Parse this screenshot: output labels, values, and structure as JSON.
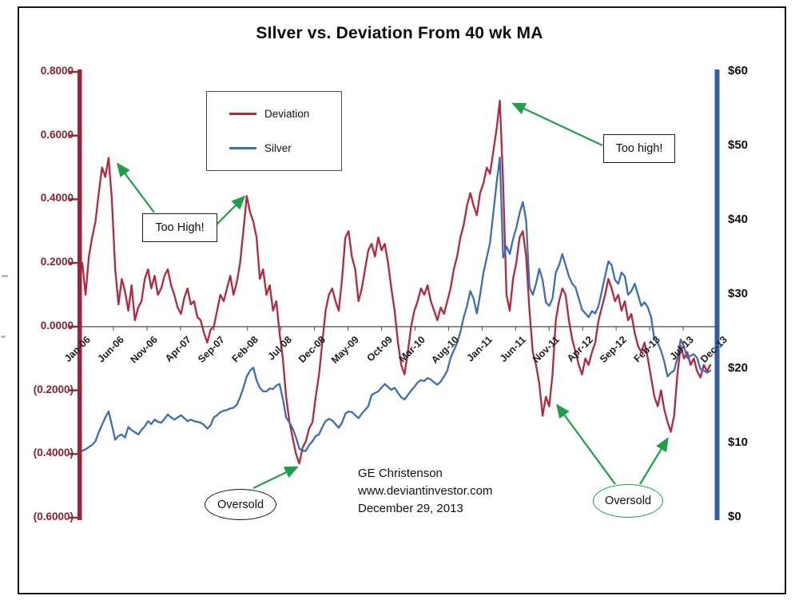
{
  "credit": {
    "line1": "GE Christenson",
    "line2": "www.deviantinvestor.com",
    "line3": "December 29, 2013"
  },
  "annotations": {
    "too_high_left": {
      "label": "Too High!"
    },
    "too_high_right": {
      "label": "Too high!"
    },
    "oversold_2008": {
      "label": "Oversold"
    },
    "oversold_right": {
      "label": "Oversold"
    },
    "arrow_color": "#1ea04b"
  },
  "chart_data": {
    "type": "line",
    "title": "SIlver vs. Deviation From 40 wk MA",
    "x_tick_labels": [
      "Jan-06",
      "Jun-06",
      "Nov-06",
      "Apr-07",
      "Sep-07",
      "Feb-08",
      "Jul-08",
      "Dec-08",
      "May-09",
      "Oct-09",
      "Mar-10",
      "Aug-10",
      "Jan-11",
      "Jun-11",
      "Nov-11",
      "Apr-12",
      "Sep-12",
      "Feb-13",
      "Jul-13",
      "Dec-13"
    ],
    "left_axis": {
      "tick_labels": [
        "0.8000",
        "0.6000",
        "0.4000",
        "0.2000",
        "0.0000",
        "(0.2000)",
        "(0.4000)",
        "(0.6000)"
      ],
      "tick_values": [
        0.8,
        0.6,
        0.4,
        0.2,
        0,
        -0.2,
        -0.4,
        -0.6
      ],
      "range": [
        -0.6,
        0.8
      ],
      "color": "#8b2030"
    },
    "right_axis": {
      "tick_labels": [
        "$60",
        "$50",
        "$40",
        "$30",
        "$20",
        "$10",
        "$0"
      ],
      "tick_values": [
        60,
        50,
        40,
        30,
        20,
        10,
        0
      ],
      "range": [
        0,
        60
      ],
      "color": "#2f5fa8"
    },
    "grid": "zero-line-only",
    "legend_position": "inside-top-left",
    "series": [
      {
        "name": "Deviation",
        "axis": "left",
        "color": "#b5273d",
        "values": [
          0.2,
          0.1,
          0.22,
          0.28,
          0.33,
          0.42,
          0.5,
          0.47,
          0.53,
          0.4,
          0.18,
          0.07,
          0.15,
          0.11,
          0.05,
          0.13,
          0.02,
          0.06,
          0.08,
          0.15,
          0.18,
          0.12,
          0.16,
          0.1,
          0.12,
          0.16,
          0.18,
          0.13,
          0.1,
          0.06,
          0.04,
          0.09,
          0.12,
          0.07,
          0.08,
          0.03,
          0.02,
          -0.02,
          -0.05,
          -0.01,
          0.0,
          0.05,
          0.1,
          0.08,
          0.12,
          0.16,
          0.1,
          0.14,
          0.2,
          0.3,
          0.41,
          0.36,
          0.33,
          0.28,
          0.15,
          0.18,
          0.1,
          0.13,
          0.05,
          0.08,
          -0.02,
          -0.1,
          -0.22,
          -0.3,
          -0.35,
          -0.4,
          -0.43,
          -0.38,
          -0.36,
          -0.32,
          -0.3,
          -0.22,
          -0.15,
          -0.05,
          0.05,
          0.1,
          0.12,
          0.08,
          0.05,
          0.15,
          0.28,
          0.3,
          0.22,
          0.18,
          0.08,
          0.12,
          0.18,
          0.24,
          0.26,
          0.22,
          0.28,
          0.24,
          0.26,
          0.2,
          0.12,
          0.05,
          -0.05,
          -0.12,
          -0.15,
          -0.08,
          0.0,
          0.05,
          0.08,
          0.12,
          0.1,
          0.13,
          0.08,
          0.05,
          0.02,
          0.06,
          0.04,
          0.08,
          0.12,
          0.18,
          0.22,
          0.28,
          0.32,
          0.38,
          0.42,
          0.38,
          0.35,
          0.42,
          0.45,
          0.5,
          0.48,
          0.55,
          0.62,
          0.71,
          0.45,
          0.1,
          0.05,
          0.15,
          0.2,
          0.28,
          0.3,
          0.22,
          0.05,
          -0.08,
          -0.12,
          -0.18,
          -0.28,
          -0.22,
          -0.25,
          -0.15,
          0.02,
          0.08,
          0.12,
          0.1,
          0.02,
          -0.04,
          -0.08,
          -0.12,
          -0.15,
          -0.1,
          -0.12,
          -0.08,
          -0.05,
          0.02,
          0.06,
          0.1,
          0.15,
          0.12,
          0.08,
          0.1,
          0.05,
          0.08,
          0.02,
          0.04,
          -0.02,
          -0.06,
          -0.08,
          -0.05,
          -0.1,
          -0.16,
          -0.22,
          -0.25,
          -0.2,
          -0.26,
          -0.3,
          -0.33,
          -0.28,
          -0.15,
          -0.06,
          -0.1,
          -0.08,
          -0.12,
          -0.1,
          -0.14,
          -0.16,
          -0.12,
          -0.14,
          -0.12
        ]
      },
      {
        "name": "Silver",
        "axis": "right",
        "color": "#3c6db5",
        "values": [
          9.0,
          9.2,
          9.5,
          9.8,
          10.3,
          11.5,
          12.5,
          13.5,
          14.3,
          12.5,
          10.5,
          11.0,
          11.2,
          10.8,
          12.2,
          11.8,
          11.5,
          11.2,
          11.8,
          12.3,
          13.0,
          12.6,
          13.2,
          12.9,
          12.8,
          13.3,
          13.9,
          13.5,
          13.2,
          13.5,
          13.8,
          13.4,
          13.0,
          13.2,
          13.0,
          12.9,
          12.8,
          12.5,
          12.0,
          12.4,
          13.5,
          13.8,
          14.2,
          14.4,
          14.5,
          14.7,
          14.8,
          15.2,
          16.2,
          17.5,
          19.0,
          19.8,
          20.2,
          18.5,
          17.5,
          17.0,
          17.0,
          17.4,
          17.3,
          17.8,
          18.0,
          16.0,
          13.5,
          12.8,
          12.0,
          10.8,
          9.3,
          9.0,
          9.0,
          9.8,
          10.3,
          11.0,
          11.2,
          12.2,
          13.0,
          13.3,
          13.1,
          12.6,
          12.1,
          12.8,
          14.0,
          14.3,
          14.2,
          13.8,
          13.4,
          14.0,
          14.5,
          15.0,
          16.5,
          16.8,
          17.0,
          17.5,
          18.0,
          17.6,
          17.2,
          17.5,
          16.8,
          16.2,
          15.9,
          16.5,
          17.1,
          17.6,
          18.2,
          18.5,
          18.4,
          18.8,
          18.6,
          18.2,
          17.9,
          18.3,
          19.0,
          19.8,
          21.5,
          22.5,
          23.5,
          25.0,
          27.0,
          28.5,
          30.5,
          29.5,
          27.5,
          30.0,
          33.0,
          35.0,
          37.0,
          41.0,
          45.0,
          48.5,
          35.0,
          36.5,
          35.5,
          37.5,
          39.0,
          41.0,
          42.5,
          40.0,
          31.0,
          30.0,
          31.5,
          33.5,
          32.0,
          29.0,
          28.5,
          29.5,
          33.0,
          34.0,
          35.5,
          34.0,
          32.5,
          31.5,
          31.0,
          29.5,
          28.0,
          27.5,
          27.0,
          27.8,
          27.5,
          28.5,
          30.5,
          32.5,
          34.5,
          34.0,
          32.0,
          31.5,
          33.0,
          32.5,
          30.0,
          30.5,
          31.5,
          30.0,
          28.5,
          29.0,
          28.3,
          27.0,
          24.0,
          23.5,
          22.5,
          21.0,
          19.0,
          19.5,
          19.8,
          21.5,
          24.0,
          23.0,
          21.5,
          21.8,
          22.0,
          21.5,
          20.0,
          19.8,
          19.5,
          19.8
        ]
      }
    ]
  }
}
